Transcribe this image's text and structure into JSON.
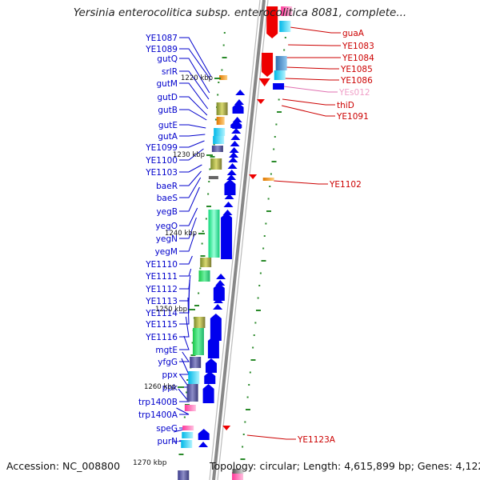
{
  "header": {
    "title": "Yersinia enterocolitica subsp. enterocolitica 8081, complete..."
  },
  "footer": {
    "accession": "Accession: NC_008800",
    "topology": "Topology: circular; Length: 4,615,899 bp; Genes: 4,122",
    "scale_label": "1270 kbp"
  },
  "scale_marks": [
    "1220 kbp",
    "1230 kbp",
    "1240 kbp",
    "1250 kbp",
    "1260 kbp"
  ],
  "left_genes": [
    "YE1087",
    "YE1089",
    "gutQ",
    "srlR",
    "gutM",
    "gutD",
    "gutB",
    "gutE",
    "gutA",
    "YE1099",
    "YE1100",
    "YE1103",
    "baeR",
    "baeS",
    "yegB",
    "yegO",
    "yegN",
    "yegM",
    "YE1110",
    "YE1111",
    "YE1112",
    "YE1113",
    "YE1114",
    "YE1115",
    "YE1116",
    "mgtE",
    "yfgG",
    "ppx",
    "ppk",
    "trp1400B",
    "trp1400A",
    "speG",
    "purN"
  ],
  "right_genes": [
    {
      "name": "guaA",
      "color": "#cc0000"
    },
    {
      "name": "YE1083",
      "color": "#cc0000"
    },
    {
      "name": "YE1084",
      "color": "#cc0000"
    },
    {
      "name": "YE1085",
      "color": "#cc0000"
    },
    {
      "name": "YE1086",
      "color": "#cc0000"
    },
    {
      "name": "YEs012",
      "color": "#f0a0c8"
    },
    {
      "name": "thiD",
      "color": "#cc0000"
    },
    {
      "name": "YE1091",
      "color": "#cc0000"
    },
    {
      "name": "YE1102",
      "color": "#cc0000"
    },
    {
      "name": "YE1123A",
      "color": "#cc0000"
    }
  ],
  "colors": {
    "forward_strand": "#0000ee",
    "reverse_strand": "#ee0000",
    "leader_left": "#0000cc",
    "leader_right": "#cc0000",
    "backbone": "#888888",
    "tick": "#2a8a2a"
  }
}
